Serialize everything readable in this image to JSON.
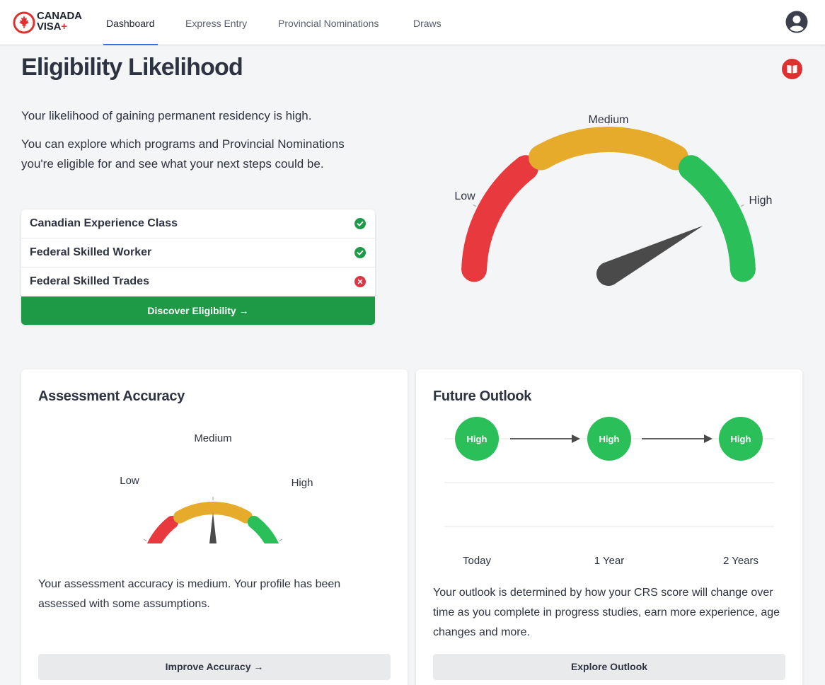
{
  "brand": {
    "line1": "CANADA",
    "line2": "VISA",
    "plus": "+"
  },
  "nav": {
    "tabs": [
      {
        "label": "Dashboard",
        "active": true
      },
      {
        "label": "Express Entry",
        "active": false
      },
      {
        "label": "Provincial Nominations",
        "active": false
      },
      {
        "label": "Draws",
        "active": false
      }
    ],
    "profile_icon": "user-circle-icon"
  },
  "page": {
    "title": "Eligibility Likelihood",
    "guide_icon": "book-open-icon",
    "intro": [
      "Your likelihood of gaining permanent residency is high.",
      "You can explore which programs and Provincial Nominations you're eligible for and see what your next steps could be."
    ]
  },
  "programs": {
    "items": [
      {
        "label": "Canadian Experience Class",
        "status": "eligible",
        "icon": "check-circle-icon"
      },
      {
        "label": "Federal Skilled Worker",
        "status": "eligible",
        "icon": "check-circle-icon"
      },
      {
        "label": "Federal Skilled Trades",
        "status": "not-eligible",
        "icon": "x-circle-icon"
      }
    ],
    "button_label": "Discover Eligibility →"
  },
  "likelihood_gauge": {
    "labels": {
      "low": "Low",
      "medium": "Medium",
      "high": "High"
    },
    "level": "High",
    "needle_fraction": 0.85,
    "colors": {
      "low": "#e8393e",
      "medium": "#e6ab2a",
      "high": "#2bbf5a",
      "needle": "#4a4a4a"
    }
  },
  "accuracy": {
    "title": "Assessment Accuracy",
    "labels": {
      "low": "Low",
      "medium": "Medium",
      "high": "High"
    },
    "level": "Medium",
    "needle_fraction": 0.5,
    "text": "Your assessment accuracy is medium. Your profile has been assessed with some assumptions.",
    "button_label": "Improve Accuracy →"
  },
  "outlook": {
    "title": "Future Outlook",
    "points": [
      {
        "value": "High",
        "time": "Today"
      },
      {
        "value": "High",
        "time": "1 Year"
      },
      {
        "value": "High",
        "time": "2 Years"
      }
    ],
    "text": "Your outlook is determined by how your CRS score will change over time as you complete in progress studies, earn more experience, age changes and more.",
    "button_label": "Explore Outlook",
    "colors": {
      "point": "#2bbf5a"
    }
  }
}
